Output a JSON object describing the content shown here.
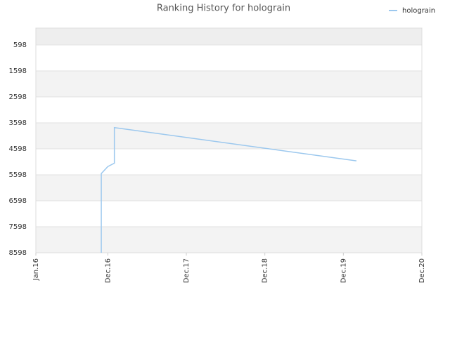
{
  "chart_data": {
    "type": "line",
    "title": "Ranking History for holograin",
    "x": [
      "2016-11",
      "2016-11",
      "2016-12",
      "2017-01",
      "2017-01",
      "2020-02"
    ],
    "series": [
      {
        "name": "holograin",
        "color": "#9cc8ee",
        "values": [
          8598,
          5550,
          5280,
          5150,
          3780,
          5060
        ]
      }
    ],
    "xlim": [
      "2016-01",
      "2020-12"
    ],
    "xticks": [
      {
        "value": "2016-01",
        "label": "Jan.16"
      },
      {
        "value": "2016-12",
        "label": "Dec.16"
      },
      {
        "value": "2017-12",
        "label": "Dec.17"
      },
      {
        "value": "2018-12",
        "label": "Dec.18"
      },
      {
        "value": "2019-12",
        "label": "Dec.19"
      },
      {
        "value": "2020-12",
        "label": "Dec.20"
      }
    ],
    "ylim": [
      8598,
      -50
    ],
    "yticks": [
      598,
      1598,
      2598,
      3598,
      4598,
      5598,
      6598,
      7598,
      8598
    ],
    "legend": "top-right",
    "grid": true
  }
}
